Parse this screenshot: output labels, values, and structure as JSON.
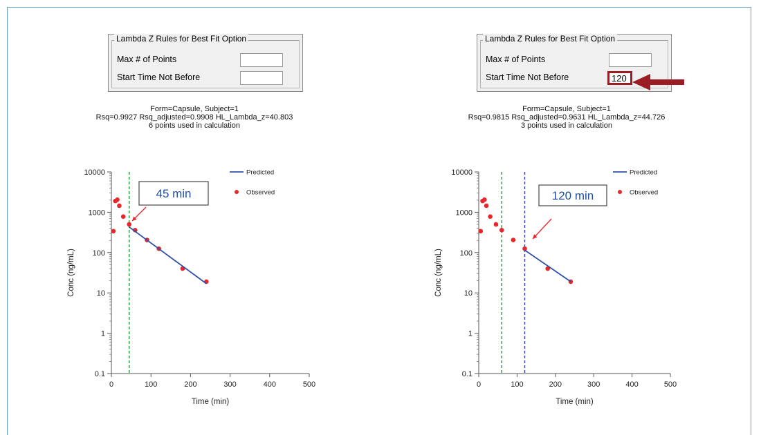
{
  "colors": {
    "observed": "#e8272a",
    "predicted": "#2f4fa8",
    "start_line_green": "#1e9a3a",
    "start_line_blue": "#2f3fb8",
    "annotation_box_text": "#1f4e9e",
    "big_arrow": "#9b1c24",
    "small_arrow": "#e8272a"
  },
  "panels": [
    {
      "group_title": "Lambda Z Rules for Best Fit Option",
      "max_points_label": "Max # of Points",
      "max_points_value": "",
      "start_time_label": "Start Time Not Before",
      "start_time_value": "",
      "subtitle_line1": "Form=Capsule, Subject=1",
      "subtitle_line2": "Rsq=0.9927  Rsq_adjusted=0.9908  HL_Lambda_z=40.803",
      "subtitle_line3": "6 points used in calculation",
      "annotation": "45 min"
    },
    {
      "group_title": "Lambda Z Rules for Best Fit Option",
      "max_points_label": "Max # of Points",
      "max_points_value": "",
      "start_time_label": "Start Time Not Before",
      "start_time_value": "120",
      "subtitle_line1": "Form=Capsule, Subject=1",
      "subtitle_line2": "Rsq=0.9815  Rsq_adjusted=0.9631  HL_Lambda_z=44.726",
      "subtitle_line3": "3 points used in calculation",
      "annotation": "120 min"
    }
  ],
  "chart_data": [
    {
      "type": "scatter",
      "xlabel": "Time (min)",
      "ylabel": "Conc (ng/mL)",
      "xlim": [
        0,
        500
      ],
      "ylim": [
        0.1,
        10000
      ],
      "y_scale": "log",
      "x_ticks": [
        0,
        100,
        200,
        300,
        400,
        500
      ],
      "y_ticks": [
        0.1,
        1,
        10,
        100,
        1000,
        10000
      ],
      "x_tick_labels": [
        "0",
        "100",
        "200",
        "300",
        "400",
        "500"
      ],
      "y_tick_labels": [
        "0.1",
        "1",
        "10",
        "100",
        "1000",
        "10000"
      ],
      "legend_position": "top-right",
      "series": [
        {
          "name": "Observed",
          "kind": "points",
          "x": [
            5,
            10,
            15,
            20,
            30,
            45,
            60,
            90,
            120,
            180,
            240
          ],
          "y": [
            340,
            1900,
            2050,
            1450,
            780,
            500,
            360,
            205,
            125,
            40,
            19
          ]
        },
        {
          "name": "Predicted",
          "kind": "line",
          "x": [
            45,
            240
          ],
          "y": [
            430,
            17
          ]
        }
      ],
      "vertical_lines": [
        {
          "x": 45,
          "style": "dashed",
          "color": "green"
        }
      ],
      "annotation_target": {
        "x": 45,
        "y": 500
      }
    },
    {
      "type": "scatter",
      "xlabel": "Time (min)",
      "ylabel": "Conc (ng/mL)",
      "xlim": [
        0,
        500
      ],
      "ylim": [
        0.1,
        10000
      ],
      "y_scale": "log",
      "x_ticks": [
        0,
        100,
        200,
        300,
        400,
        500
      ],
      "y_ticks": [
        0.1,
        1,
        10,
        100,
        1000,
        10000
      ],
      "x_tick_labels": [
        "0",
        "100",
        "200",
        "300",
        "400",
        "500"
      ],
      "y_tick_labels": [
        "0.1",
        "1",
        "10",
        "100",
        "1000",
        "10000"
      ],
      "legend_position": "top-right",
      "series": [
        {
          "name": "Observed",
          "kind": "points",
          "x": [
            5,
            10,
            15,
            20,
            30,
            45,
            60,
            90,
            120,
            180,
            240
          ],
          "y": [
            340,
            1900,
            2050,
            1450,
            780,
            500,
            360,
            205,
            125,
            40,
            19
          ]
        },
        {
          "name": "Predicted",
          "kind": "line",
          "x": [
            120,
            240
          ],
          "y": [
            115,
            19
          ]
        }
      ],
      "vertical_lines": [
        {
          "x": 60,
          "style": "dashed",
          "color": "green"
        },
        {
          "x": 120,
          "style": "dashed",
          "color": "blue"
        }
      ],
      "annotation_target": {
        "x": 120,
        "y": 125
      }
    }
  ]
}
